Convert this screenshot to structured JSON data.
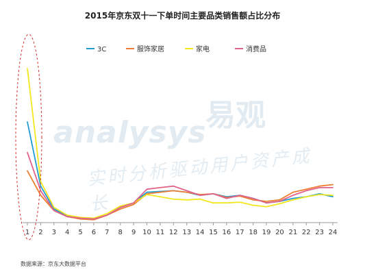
{
  "title": "2015年京东双十一下单时间主要品类销售额占比分布",
  "source": "数据来源：京东大数据平台",
  "watermark": {
    "brand_en": "analysys",
    "brand_cn": "易观",
    "slogan": "实时分析驱动用户资产成长"
  },
  "colors": {
    "3C": "#1f9bd2",
    "服饰家居": "#ed7d31",
    "家电": "#f2e61c",
    "消费品": "#e0628a",
    "highlight": "#d0312d",
    "axis": "#999999"
  },
  "chart_data": {
    "type": "line",
    "title": "2015年京东双十一下单时间主要品类销售额占比分布",
    "xlabel": "",
    "ylabel": "",
    "legend_position": "top",
    "grid": false,
    "x": [
      1,
      2,
      3,
      4,
      5,
      6,
      7,
      8,
      9,
      10,
      11,
      12,
      13,
      14,
      15,
      16,
      17,
      18,
      19,
      20,
      21,
      22,
      23,
      24
    ],
    "ylim": [
      0,
      100
    ],
    "series": [
      {
        "name": "3C",
        "color": "#1f9bd2",
        "values": [
          65,
          23,
          8,
          3.5,
          2,
          1.5,
          4,
          9,
          12,
          19,
          19.5,
          20,
          19,
          17,
          18,
          16,
          17,
          15,
          12,
          13,
          15,
          16,
          18,
          16
        ]
      },
      {
        "name": "服饰家居",
        "color": "#ed7d31",
        "values": [
          33,
          17,
          7,
          3,
          1.5,
          1,
          4,
          8,
          11,
          18,
          19,
          20,
          19,
          17.5,
          18,
          15.5,
          16.5,
          14,
          13,
          14,
          19,
          21,
          23,
          24
        ]
      },
      {
        "name": "家电",
        "color": "#f2e61c",
        "values": [
          100,
          26,
          9,
          4,
          2.5,
          2,
          5,
          10,
          12,
          17.5,
          16,
          14.5,
          14,
          14.5,
          12,
          12,
          12.5,
          10.5,
          9.5,
          11.5,
          14,
          16,
          17.5,
          17
        ]
      },
      {
        "name": "消费品",
        "color": "#e0628a",
        "values": [
          45,
          20,
          7,
          3,
          2,
          1.5,
          4,
          9,
          12,
          21,
          22,
          23,
          20,
          17,
          18,
          15,
          17,
          15,
          12,
          13,
          17,
          20,
          22,
          22
        ]
      }
    ]
  }
}
